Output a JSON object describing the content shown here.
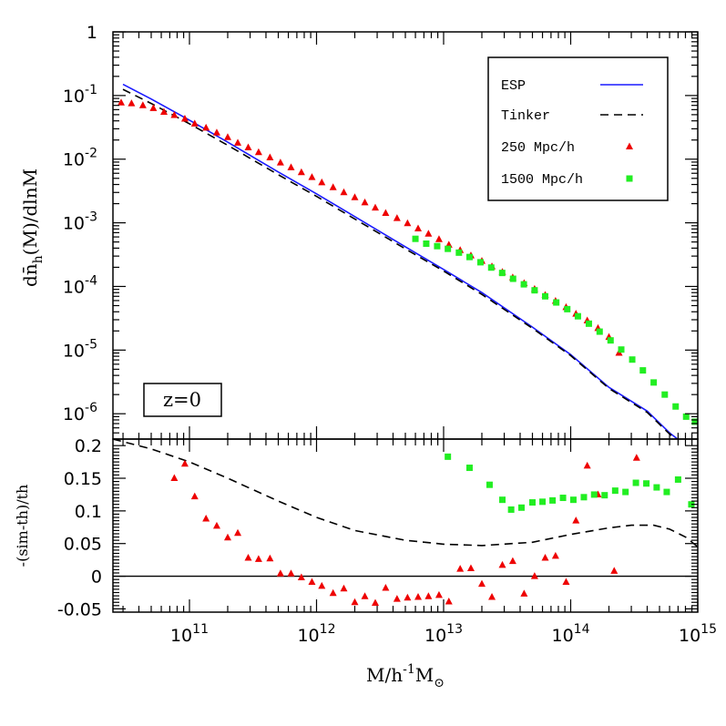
{
  "chart_data": [
    {
      "type": "line",
      "panel": "top",
      "xscale": "log",
      "yscale": "log",
      "xlim": [
        25000000000.0,
        1000000000000000.0
      ],
      "ylim": [
        4e-07,
        1
      ],
      "ylabel": "dn̄h(M)/dlnM",
      "yticks": [
        "1",
        "10-1",
        "10-2",
        "10-3",
        "10-4",
        "10-5",
        "10-6"
      ],
      "annotation": "z=0",
      "legend": {
        "placement": "top-right",
        "entries": [
          "ESP",
          "Tinker",
          "250 Mpc/h",
          "1500 Mpc/h"
        ]
      },
      "series": [
        {
          "name": "ESP",
          "style": "solid",
          "color": "#1a1aff",
          "x": [
            30000000000.0,
            50000000000.0,
            100000000000.0,
            200000000000.0,
            500000000000.0,
            1000000000000.0,
            2000000000000.0,
            5000000000000.0,
            10000000000000.0,
            20000000000000.0,
            50000000000000.0,
            100000000000000.0,
            200000000000000.0,
            400000000000000.0,
            600000000000000.0,
            800000000000000.0,
            1000000000000000.0
          ],
          "y": [
            0.15,
            0.088,
            0.041,
            0.0185,
            0.0063,
            0.00285,
            0.00125,
            0.00042,
            0.000185,
            8e-05,
            2.3e-05,
            8.5e-06,
            2.6e-06,
            1.1e-06,
            5e-07,
            3.2e-07,
            2.2e-07
          ]
        },
        {
          "name": "Tinker",
          "style": "dashed",
          "color": "#000000",
          "x": [
            30000000000.0,
            50000000000.0,
            100000000000.0,
            200000000000.0,
            500000000000.0,
            1000000000000.0,
            2000000000000.0,
            5000000000000.0,
            10000000000000.0,
            20000000000000.0,
            50000000000000.0,
            100000000000000.0,
            200000000000000.0,
            400000000000000.0,
            600000000000000.0,
            800000000000000.0,
            1000000000000000.0
          ],
          "y": [
            0.125,
            0.075,
            0.036,
            0.0165,
            0.0057,
            0.0026,
            0.00115,
            0.00039,
            0.000175,
            7.5e-05,
            2.2e-05,
            8.2e-06,
            2.5e-06,
            1.05e-06,
            4.8e-07,
            3.1e-07,
            2.1e-07
          ]
        },
        {
          "name": "250 Mpc/h",
          "style": "triangle",
          "color": "#ee0000",
          "x": [
            29000000000.0,
            35000000000.0,
            43000000000.0,
            52000000000.0,
            63000000000.0,
            76000000000.0,
            92000000000.0,
            110000000000.0,
            135000000000.0,
            164000000000.0,
            200000000000.0,
            240000000000.0,
            290000000000.0,
            350000000000.0,
            430000000000.0,
            520000000000.0,
            630000000000.0,
            760000000000.0,
            920000000000.0,
            1100000000000.0,
            1350000000000.0,
            1640000000000.0,
            2000000000000.0,
            2400000000000.0,
            2900000000000.0,
            3500000000000.0,
            4300000000000.0,
            5200000000000.0,
            6300000000000.0,
            7600000000000.0,
            9200000000000.0,
            11000000000000.0,
            13500000000000.0,
            16400000000000.0,
            20000000000000.0,
            24000000000000.0,
            29000000000000.0,
            35000000000000.0,
            43000000000000.0,
            52000000000000.0,
            63000000000000.0,
            76000000000000.0,
            92000000000000.0,
            110000000000000.0,
            135000000000000.0,
            164000000000000.0,
            200000000000000.0,
            240000000000000.0
          ],
          "y": [
            0.077,
            0.075,
            0.07,
            0.063,
            0.055,
            0.049,
            0.043,
            0.036,
            0.031,
            0.026,
            0.022,
            0.018,
            0.0152,
            0.0128,
            0.0106,
            0.0088,
            0.0074,
            0.0062,
            0.0052,
            0.0043,
            0.0036,
            0.003,
            0.0025,
            0.00208,
            0.00172,
            0.00142,
            0.00118,
            0.00098,
            0.00081,
            0.00067,
            0.00055,
            0.00045,
            0.00037,
            0.000305,
            0.00025,
            0.000205,
            0.000168,
            0.000138,
            0.000112,
            9.1e-05,
            7.3e-05,
            5.9e-05,
            4.7e-05,
            3.7e-05,
            2.9e-05,
            2.2e-05,
            1.6e-05,
            9e-06
          ]
        },
        {
          "name": "1500 Mpc/h",
          "style": "square",
          "color": "#22ee22",
          "x": [
            6000000000000.0,
            7300000000000.0,
            8900000000000.0,
            10800000000000.0,
            13200000000000.0,
            16000000000000.0,
            19500000000000.0,
            23700000000000.0,
            28900000000000.0,
            35200000000000.0,
            42800000000000.0,
            52000000000000.0,
            63000000000000.0,
            77000000000000.0,
            94000000000000.0,
            114000000000000.0,
            139000000000000.0,
            169000000000000.0,
            206000000000000.0,
            250000000000000.0,
            305000000000000.0,
            370000000000000.0,
            450000000000000.0,
            550000000000000.0,
            670000000000000.0,
            810000000000000.0,
            950000000000000.0
          ],
          "y": [
            0.00056,
            0.00047,
            0.00043,
            0.00039,
            0.00034,
            0.00029,
            0.00024,
            0.000198,
            0.000163,
            0.000132,
            0.000108,
            8.7e-05,
            7e-05,
            5.6e-05,
            4.4e-05,
            3.4e-05,
            2.6e-05,
            1.95e-05,
            1.42e-05,
            1.02e-05,
            7.1e-06,
            4.8e-06,
            3.1e-06,
            2e-06,
            1.3e-06,
            9e-07,
            7.5e-07
          ]
        }
      ]
    },
    {
      "type": "line",
      "panel": "bottom",
      "xscale": "log",
      "xlim": [
        25000000000.0,
        1000000000000000.0
      ],
      "ylim": [
        -0.055,
        0.21
      ],
      "xlabel": "M/h-1M⊙",
      "ylabel": "-(sim-th)/th",
      "xticks": [
        "1011",
        "1012",
        "1013",
        "1014",
        "1015"
      ],
      "yticks": [
        "0.2",
        "0.15",
        "0.1",
        "0.05",
        "0",
        "-0.05"
      ],
      "series": [
        {
          "name": "Tinker",
          "style": "dashed",
          "color": "#000000",
          "x": [
            25000000000.0,
            50000000000.0,
            100000000000.0,
            200000000000.0,
            500000000000.0,
            1000000000000.0,
            2000000000000.0,
            5000000000000.0,
            10000000000000.0,
            20000000000000.0,
            50000000000000.0,
            100000000000000.0,
            200000000000000.0,
            300000000000000.0,
            450000000000000.0,
            600000000000000.0,
            800000000000000.0,
            1000000000000000.0
          ],
          "y": [
            0.21,
            0.195,
            0.175,
            0.15,
            0.115,
            0.09,
            0.07,
            0.055,
            0.049,
            0.047,
            0.052,
            0.064,
            0.074,
            0.078,
            0.078,
            0.072,
            0.06,
            0.045
          ]
        },
        {
          "name": "250 Mpc/h",
          "style": "triangle",
          "color": "#ee0000",
          "x": [
            76000000000.0,
            92000000000.0,
            110000000000.0,
            135000000000.0,
            164000000000.0,
            200000000000.0,
            240000000000.0,
            290000000000.0,
            350000000000.0,
            430000000000.0,
            520000000000.0,
            630000000000.0,
            760000000000.0,
            920000000000.0,
            1100000000000.0,
            1350000000000.0,
            1640000000000.0,
            2000000000000.0,
            2400000000000.0,
            2900000000000.0,
            3500000000000.0,
            4300000000000.0,
            5200000000000.0,
            6300000000000.0,
            7600000000000.0,
            9200000000000.0,
            11000000000000.0,
            13500000000000.0,
            16400000000000.0,
            20000000000000.0,
            24000000000000.0,
            29000000000000.0,
            35000000000000.0,
            43000000000000.0,
            52000000000000.0,
            63000000000000.0,
            76000000000000.0,
            92000000000000.0,
            110000000000000.0,
            135000000000000.0,
            164000000000000.0,
            220000000000000.0,
            330000000000000.0,
            420000000000000.0
          ],
          "y": [
            0.15,
            0.172,
            0.122,
            0.088,
            0.077,
            0.059,
            0.066,
            0.028,
            0.026,
            0.027,
            0.004,
            0.004,
            -0.002,
            -0.009,
            -0.015,
            -0.026,
            -0.019,
            -0.04,
            -0.031,
            -0.041,
            -0.018,
            -0.035,
            -0.033,
            -0.032,
            -0.031,
            -0.029,
            -0.039,
            0.011,
            0.012,
            -0.012,
            -0.032,
            0.017,
            0.023,
            -0.027,
            0.0,
            0.028,
            0.031,
            -0.009,
            0.085,
            0.169,
            0.125,
            0.008,
            0.181,
            -0.06
          ]
        },
        {
          "name": "1500 Mpc/h",
          "style": "square",
          "color": "#22ee22",
          "x": [
            10800000000000.0,
            16000000000000.0,
            23000000000000.0,
            29000000000000.0,
            34000000000000.0,
            41000000000000.0,
            50000000000000.0,
            60000000000000.0,
            72000000000000.0,
            87000000000000.0,
            105000000000000.0,
            127000000000000.0,
            153000000000000.0,
            185000000000000.0,
            224000000000000.0,
            270000000000000.0,
            326000000000000.0,
            394000000000000.0,
            475000000000000.0,
            570000000000000.0,
            700000000000000.0,
            890000000000000.0
          ],
          "y": [
            0.183,
            0.166,
            0.14,
            0.117,
            0.102,
            0.105,
            0.113,
            0.114,
            0.116,
            0.12,
            0.117,
            0.121,
            0.125,
            0.124,
            0.131,
            0.129,
            0.143,
            0.142,
            0.136,
            0.129,
            0.148,
            0.11
          ]
        }
      ]
    }
  ]
}
